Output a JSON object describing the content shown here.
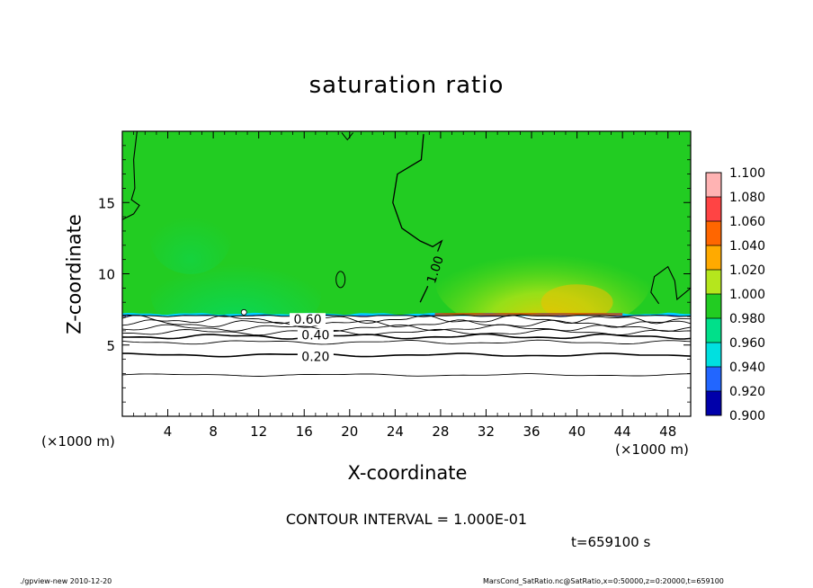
{
  "chart_data": {
    "type": "contour",
    "title": "saturation ratio",
    "xlabel": "X-coordinate",
    "ylabel": "Z-coordinate",
    "x_unit_label": "(×1000 m)",
    "z_unit_label": "(×1000 m)",
    "xlim": [
      0,
      50
    ],
    "ylim": [
      0,
      20
    ],
    "x_ticks": [
      4,
      8,
      12,
      16,
      20,
      24,
      28,
      32,
      36,
      40,
      44,
      48
    ],
    "y_ticks": [
      5,
      10,
      15
    ],
    "colorbar": {
      "levels": [
        "1.100",
        "1.080",
        "1.060",
        "1.040",
        "1.020",
        "1.000",
        "0.980",
        "0.960",
        "0.940",
        "0.920",
        "0.900"
      ],
      "colors": [
        "#ffb3b3",
        "#ff4444",
        "#ff6600",
        "#ffaa00",
        "#b5e61d",
        "#22cc22",
        "#00e08a",
        "#00e0e0",
        "#2266ff",
        "#0000aa",
        "#5500aa"
      ]
    },
    "contour_labels": [
      {
        "text": "1.00",
        "x": 27.5,
        "z": 10.3
      },
      {
        "text": "0.60",
        "x": 16.3,
        "z": 6.8
      },
      {
        "text": "0.40",
        "x": 17.0,
        "z": 5.7
      },
      {
        "text": "0.20",
        "x": 17.0,
        "z": 4.2
      }
    ],
    "contour_lines_z": [
      2.9,
      4.3,
      5.2,
      5.6,
      5.9,
      6.2,
      6.5,
      6.8
    ],
    "saturation_boundary_z": 7.1,
    "contour_interval_text": "CONTOUR INTERVAL = 1.000E-01",
    "time_text": "t=659100 s"
  },
  "footer": {
    "left": "./gpview-new   2010-12-20",
    "right": "MarsCond_SatRatio.nc@SatRatio,x=0:50000,z=0:20000,t=659100"
  }
}
